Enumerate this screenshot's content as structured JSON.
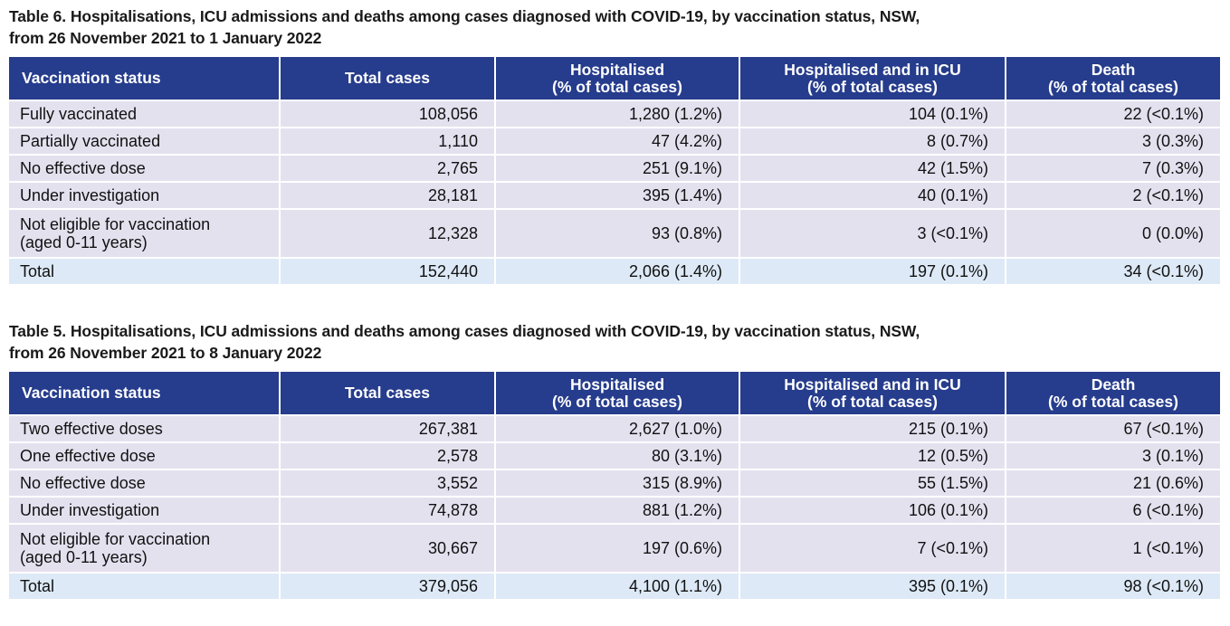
{
  "tables": [
    {
      "caption_line1": "Table 6. Hospitalisations, ICU admissions and deaths among cases diagnosed with COVID-19, by vaccination status, NSW,",
      "caption_line2": "from 26 November 2021 to 1 January 2022",
      "headers": [
        {
          "line1": "Vaccination status",
          "line2": ""
        },
        {
          "line1": "Total cases",
          "line2": ""
        },
        {
          "line1": "Hospitalised",
          "line2": "(% of total cases)"
        },
        {
          "line1": "Hospitalised and in ICU",
          "line2": "(% of total cases)"
        },
        {
          "line1": "Death",
          "line2": "(% of total cases)"
        }
      ],
      "rows": [
        {
          "status": "Fully vaccinated",
          "status2": "",
          "total_cases": "108,056",
          "hospitalised": "1,280 (1.2%)",
          "icu": "104   (0.1%)",
          "death": "22 (<0.1%)"
        },
        {
          "status": "Partially vaccinated",
          "status2": "",
          "total_cases": "1,110",
          "hospitalised": "47 (4.2%)",
          "icu": "8   (0.7%)",
          "death": "3   (0.3%)"
        },
        {
          "status": "No effective dose",
          "status2": "",
          "total_cases": "2,765",
          "hospitalised": "251 (9.1%)",
          "icu": "42   (1.5%)",
          "death": "7   (0.3%)"
        },
        {
          "status": "Under investigation",
          "status2": "",
          "total_cases": "28,181",
          "hospitalised": "395 (1.4%)",
          "icu": "40   (0.1%)",
          "death": "2 (<0.1%)"
        },
        {
          "status": "Not eligible for vaccination",
          "status2": "(aged 0-11 years)",
          "total_cases": "12,328",
          "hospitalised": "93 (0.8%)",
          "icu": "3 (<0.1%)",
          "death": "0   (0.0%)"
        }
      ],
      "total_row": {
        "status": "Total",
        "total_cases": "152,440",
        "hospitalised": "2,066 (1.4%)",
        "icu": "197   (0.1%)",
        "death": "34 (<0.1%)"
      }
    },
    {
      "caption_line1": "Table 5. Hospitalisations, ICU admissions and deaths among cases diagnosed with COVID-19, by vaccination status, NSW,",
      "caption_line2": "from 26 November 2021 to 8 January 2022",
      "headers": [
        {
          "line1": "Vaccination status",
          "line2": ""
        },
        {
          "line1": "Total cases",
          "line2": ""
        },
        {
          "line1": "Hospitalised",
          "line2": "(% of total cases)"
        },
        {
          "line1": "Hospitalised and in ICU",
          "line2": "(% of total cases)"
        },
        {
          "line1": "Death",
          "line2": "(% of total cases)"
        }
      ],
      "rows": [
        {
          "status": "Two effective doses",
          "status2": "",
          "total_cases": "267,381",
          "hospitalised": "2,627 (1.0%)",
          "icu": "215   (0.1%)",
          "death": "67 (<0.1%)"
        },
        {
          "status": "One effective dose",
          "status2": "",
          "total_cases": "2,578",
          "hospitalised": "80 (3.1%)",
          "icu": "12   (0.5%)",
          "death": "3   (0.1%)"
        },
        {
          "status": "No effective dose",
          "status2": "",
          "total_cases": "3,552",
          "hospitalised": "315 (8.9%)",
          "icu": "55   (1.5%)",
          "death": "21   (0.6%)"
        },
        {
          "status": "Under investigation",
          "status2": "",
          "total_cases": "74,878",
          "hospitalised": "881 (1.2%)",
          "icu": "106   (0.1%)",
          "death": "6 (<0.1%)"
        },
        {
          "status": "Not eligible for vaccination",
          "status2": "(aged 0-11 years)",
          "total_cases": "30,667",
          "hospitalised": "197 (0.6%)",
          "icu": "7 (<0.1%)",
          "death": "1 (<0.1%)"
        }
      ],
      "total_row": {
        "status": "Total",
        "total_cases": "379,056",
        "hospitalised": "4,100 (1.1%)",
        "icu": "395   (0.1%)",
        "death": "98 (<0.1%)"
      }
    }
  ],
  "colors": {
    "header_bg": "#263c8c",
    "header_text": "#ffffff",
    "row_bg": "#e4e1ef",
    "total_row_bg": "#dde9f6"
  }
}
